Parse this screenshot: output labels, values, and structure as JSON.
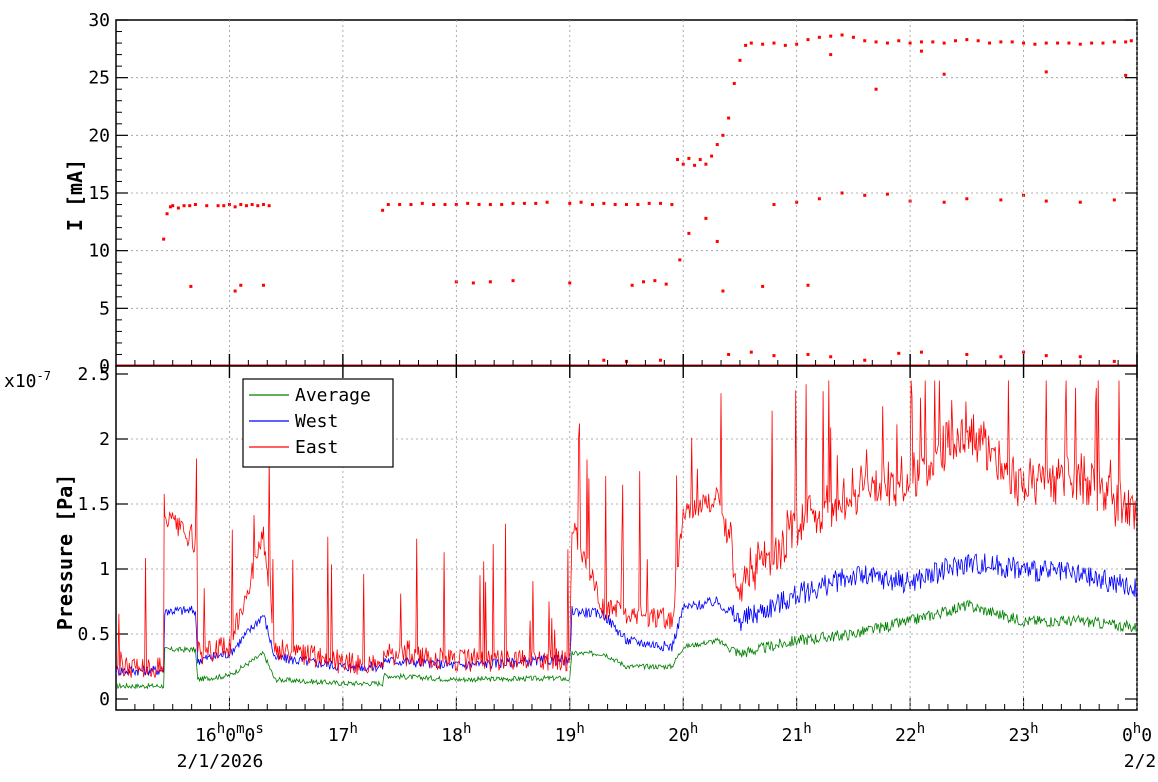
{
  "chart_data": [
    {
      "type": "scatter",
      "ylabel": "I [mA]",
      "ylim": [
        0,
        30
      ],
      "yticks": [
        "0",
        "5",
        "10",
        "15",
        "20",
        "25",
        "30"
      ],
      "grid": true,
      "series": [
        {
          "color": "#ff0000",
          "points": [
            [
              15.42,
              11.0
            ],
            [
              15.45,
              13.2
            ],
            [
              15.48,
              13.8
            ],
            [
              15.5,
              13.9
            ],
            [
              15.55,
              13.7
            ],
            [
              15.6,
              13.9
            ],
            [
              15.65,
              13.9
            ],
            [
              15.7,
              14.0
            ],
            [
              15.66,
              6.9
            ],
            [
              15.8,
              13.9
            ],
            [
              15.9,
              13.9
            ],
            [
              15.95,
              13.9
            ],
            [
              16.0,
              14.0
            ],
            [
              16.05,
              13.8
            ],
            [
              16.1,
              14.0
            ],
            [
              16.15,
              13.9
            ],
            [
              16.2,
              14.0
            ],
            [
              16.25,
              13.9
            ],
            [
              16.3,
              14.0
            ],
            [
              16.35,
              13.9
            ],
            [
              16.05,
              6.5
            ],
            [
              16.1,
              7.0
            ],
            [
              16.3,
              7.0
            ],
            [
              17.35,
              13.5
            ],
            [
              17.4,
              14.0
            ],
            [
              17.5,
              14.0
            ],
            [
              17.6,
              14.0
            ],
            [
              17.7,
              14.1
            ],
            [
              17.8,
              14.0
            ],
            [
              17.9,
              14.0
            ],
            [
              18.0,
              14.0
            ],
            [
              18.1,
              14.1
            ],
            [
              18.2,
              14.0
            ],
            [
              18.3,
              14.0
            ],
            [
              18.4,
              14.0
            ],
            [
              18.5,
              14.1
            ],
            [
              18.6,
              14.1
            ],
            [
              18.7,
              14.1
            ],
            [
              18.8,
              14.2
            ],
            [
              18.0,
              7.3
            ],
            [
              18.15,
              7.2
            ],
            [
              18.3,
              7.3
            ],
            [
              18.5,
              7.4
            ],
            [
              19.0,
              7.2
            ],
            [
              19.0,
              14.1
            ],
            [
              19.1,
              14.2
            ],
            [
              19.2,
              14.0
            ],
            [
              19.3,
              14.1
            ],
            [
              19.4,
              14.0
            ],
            [
              19.5,
              14.0
            ],
            [
              19.6,
              14.0
            ],
            [
              19.7,
              14.1
            ],
            [
              19.8,
              14.1
            ],
            [
              19.9,
              14.0
            ],
            [
              19.55,
              7.0
            ],
            [
              19.65,
              7.3
            ],
            [
              19.75,
              7.4
            ],
            [
              19.85,
              7.1
            ],
            [
              19.95,
              17.9
            ],
            [
              20.0,
              17.5
            ],
            [
              20.05,
              18.0
            ],
            [
              20.1,
              17.4
            ],
            [
              20.15,
              17.9
            ],
            [
              20.2,
              17.5
            ],
            [
              20.25,
              18.2
            ],
            [
              20.3,
              19.2
            ],
            [
              20.35,
              20.0
            ],
            [
              19.97,
              9.2
            ],
            [
              20.05,
              11.5
            ],
            [
              20.2,
              12.8
            ],
            [
              20.3,
              10.8
            ],
            [
              20.35,
              6.5
            ],
            [
              20.4,
              21.5
            ],
            [
              20.45,
              24.5
            ],
            [
              20.5,
              26.5
            ],
            [
              20.55,
              27.8
            ],
            [
              20.6,
              28.0
            ],
            [
              20.7,
              27.9
            ],
            [
              20.8,
              28.0
            ],
            [
              20.9,
              27.8
            ],
            [
              21.0,
              27.9
            ],
            [
              21.1,
              28.3
            ],
            [
              21.2,
              28.5
            ],
            [
              21.3,
              28.6
            ],
            [
              21.4,
              28.7
            ],
            [
              21.5,
              28.5
            ],
            [
              21.6,
              28.2
            ],
            [
              21.7,
              28.1
            ],
            [
              21.8,
              28.0
            ],
            [
              21.9,
              28.2
            ],
            [
              22.0,
              28.0
            ],
            [
              22.1,
              28.1
            ],
            [
              22.2,
              28.1
            ],
            [
              22.3,
              28.0
            ],
            [
              22.4,
              28.2
            ],
            [
              22.5,
              28.3
            ],
            [
              22.6,
              28.2
            ],
            [
              22.7,
              28.0
            ],
            [
              22.8,
              28.1
            ],
            [
              22.9,
              28.1
            ],
            [
              23.0,
              28.0
            ],
            [
              23.1,
              27.9
            ],
            [
              23.2,
              28.0
            ],
            [
              23.3,
              28.0
            ],
            [
              23.4,
              28.0
            ],
            [
              23.5,
              27.9
            ],
            [
              23.6,
              28.0
            ],
            [
              23.7,
              28.0
            ],
            [
              23.8,
              28.1
            ],
            [
              23.9,
              28.1
            ],
            [
              23.95,
              28.2
            ],
            [
              20.8,
              14.0
            ],
            [
              21.0,
              14.2
            ],
            [
              21.2,
              14.5
            ],
            [
              21.4,
              15.0
            ],
            [
              21.6,
              14.8
            ],
            [
              21.8,
              14.9
            ],
            [
              22.0,
              14.3
            ],
            [
              22.3,
              14.2
            ],
            [
              22.5,
              14.5
            ],
            [
              22.8,
              14.4
            ],
            [
              23.0,
              14.8
            ],
            [
              23.2,
              14.3
            ],
            [
              23.5,
              14.2
            ],
            [
              23.8,
              14.4
            ],
            [
              21.1,
              7.0
            ],
            [
              20.7,
              6.9
            ],
            [
              21.3,
              27.0
            ],
            [
              21.7,
              24.0
            ],
            [
              22.1,
              27.3
            ],
            [
              22.3,
              25.3
            ],
            [
              23.2,
              25.5
            ],
            [
              23.9,
              25.2
            ],
            [
              20.4,
              1.0
            ],
            [
              20.6,
              1.2
            ],
            [
              20.8,
              0.9
            ],
            [
              21.1,
              1.0
            ],
            [
              21.3,
              0.8
            ],
            [
              21.6,
              0.5
            ],
            [
              21.9,
              1.1
            ],
            [
              22.1,
              1.2
            ],
            [
              22.5,
              1.0
            ],
            [
              22.8,
              0.8
            ],
            [
              23.0,
              1.2
            ],
            [
              23.2,
              0.9
            ],
            [
              23.5,
              0.8
            ],
            [
              23.8,
              0.4
            ],
            [
              19.3,
              0.5
            ],
            [
              19.5,
              0.4
            ],
            [
              19.8,
              0.5
            ]
          ],
          "baseline_value": 0
        }
      ]
    },
    {
      "type": "line",
      "ylabel": "Pressure [Pa]",
      "yunit": "x10",
      "yexp": "-7",
      "ylim": [
        0,
        2.5
      ],
      "yticks": [
        "0",
        "0.5",
        "1",
        "1.5",
        "2",
        "2.5"
      ],
      "grid": true,
      "legend": {
        "placement": "top-left"
      },
      "series": [
        {
          "name": "Average",
          "color": "#008000",
          "points": [
            [
              15.0,
              0.1
            ],
            [
              15.42,
              0.1
            ],
            [
              15.43,
              0.38
            ],
            [
              15.7,
              0.38
            ],
            [
              15.72,
              0.15
            ],
            [
              16.0,
              0.18
            ],
            [
              16.3,
              0.35
            ],
            [
              16.4,
              0.15
            ],
            [
              17.0,
              0.12
            ],
            [
              17.35,
              0.12
            ],
            [
              17.36,
              0.18
            ],
            [
              18.0,
              0.15
            ],
            [
              18.9,
              0.16
            ],
            [
              19.0,
              0.15
            ],
            [
              19.02,
              0.35
            ],
            [
              19.3,
              0.35
            ],
            [
              19.5,
              0.25
            ],
            [
              19.9,
              0.25
            ],
            [
              20.0,
              0.4
            ],
            [
              20.3,
              0.45
            ],
            [
              20.5,
              0.35
            ],
            [
              21.0,
              0.45
            ],
            [
              21.5,
              0.5
            ],
            [
              22.0,
              0.6
            ],
            [
              22.5,
              0.72
            ],
            [
              23.0,
              0.6
            ],
            [
              23.5,
              0.6
            ],
            [
              24.0,
              0.55
            ]
          ]
        },
        {
          "name": "West",
          "color": "#0000ff",
          "points": [
            [
              15.0,
              0.22
            ],
            [
              15.42,
              0.22
            ],
            [
              15.43,
              0.68
            ],
            [
              15.7,
              0.68
            ],
            [
              15.72,
              0.3
            ],
            [
              16.0,
              0.35
            ],
            [
              16.3,
              0.65
            ],
            [
              16.4,
              0.32
            ],
            [
              17.0,
              0.25
            ],
            [
              17.35,
              0.25
            ],
            [
              17.36,
              0.3
            ],
            [
              18.0,
              0.26
            ],
            [
              18.9,
              0.3
            ],
            [
              19.0,
              0.28
            ],
            [
              19.02,
              0.68
            ],
            [
              19.3,
              0.65
            ],
            [
              19.5,
              0.45
            ],
            [
              19.9,
              0.4
            ],
            [
              20.0,
              0.7
            ],
            [
              20.3,
              0.75
            ],
            [
              20.5,
              0.6
            ],
            [
              21.0,
              0.8
            ],
            [
              21.5,
              0.95
            ],
            [
              22.0,
              0.9
            ],
            [
              22.5,
              1.05
            ],
            [
              23.0,
              1.0
            ],
            [
              23.5,
              0.95
            ],
            [
              24.0,
              0.85
            ]
          ]
        },
        {
          "name": "East",
          "color": "#ff0000",
          "points": [
            [
              15.0,
              0.25
            ],
            [
              15.42,
              0.25
            ],
            [
              15.43,
              1.4
            ],
            [
              15.7,
              1.2
            ],
            [
              15.72,
              0.35
            ],
            [
              16.0,
              0.4
            ],
            [
              16.3,
              1.25
            ],
            [
              16.4,
              0.38
            ],
            [
              17.0,
              0.28
            ],
            [
              17.35,
              0.27
            ],
            [
              17.36,
              0.35
            ],
            [
              18.0,
              0.3
            ],
            [
              18.9,
              0.3
            ],
            [
              19.0,
              0.28
            ],
            [
              19.02,
              1.35
            ],
            [
              19.3,
              0.7
            ],
            [
              19.5,
              0.65
            ],
            [
              19.9,
              0.6
            ],
            [
              20.0,
              1.45
            ],
            [
              20.3,
              1.55
            ],
            [
              20.5,
              0.9
            ],
            [
              21.0,
              1.3
            ],
            [
              21.5,
              1.6
            ],
            [
              22.0,
              1.7
            ],
            [
              22.5,
              2.1
            ],
            [
              23.0,
              1.6
            ],
            [
              23.5,
              1.7
            ],
            [
              24.0,
              1.4
            ]
          ]
        }
      ]
    }
  ],
  "x_axis": {
    "range_hours": [
      15.0,
      24.0
    ],
    "tick_labels": [
      {
        "hour": 16,
        "label": "16",
        "sup": "h",
        "extra": "0",
        "sup2": "m",
        "extra2": "0",
        "sup3": "s"
      },
      {
        "hour": 17,
        "label": "17",
        "sup": "h"
      },
      {
        "hour": 18,
        "label": "18",
        "sup": "h"
      },
      {
        "hour": 19,
        "label": "19",
        "sup": "h"
      },
      {
        "hour": 20,
        "label": "20",
        "sup": "h"
      },
      {
        "hour": 21,
        "label": "21",
        "sup": "h"
      },
      {
        "hour": 22,
        "label": "22",
        "sup": "h"
      },
      {
        "hour": 23,
        "label": "23",
        "sup": "h"
      },
      {
        "hour": 24,
        "label": "0",
        "sup": "h",
        "extra": "0"
      }
    ],
    "date_start": "2/1/2026",
    "date_end": "2/2"
  }
}
